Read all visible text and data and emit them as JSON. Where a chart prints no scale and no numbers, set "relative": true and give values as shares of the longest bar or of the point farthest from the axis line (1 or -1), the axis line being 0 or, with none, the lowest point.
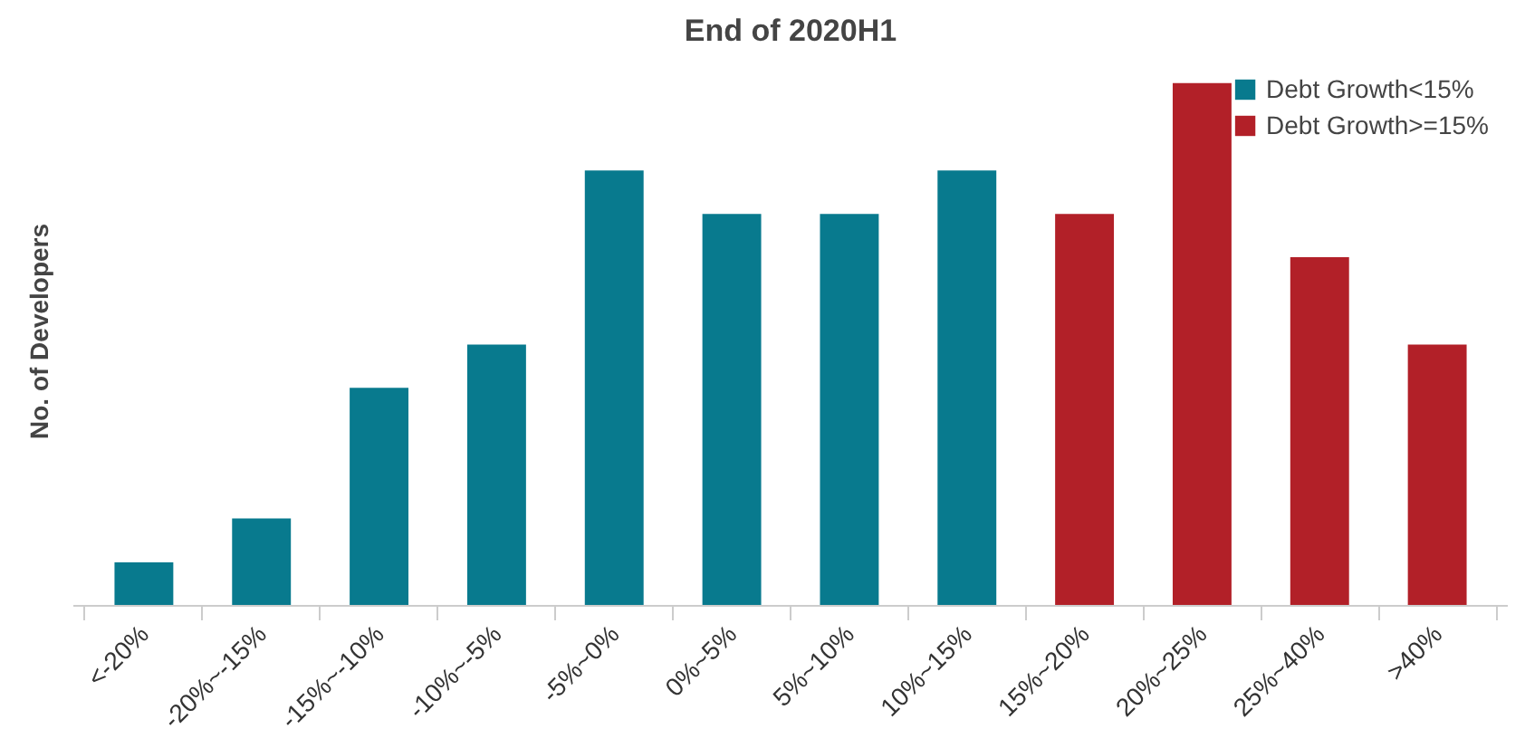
{
  "chart_data": {
    "type": "bar",
    "title": "End of 2020H1",
    "ylabel": "No. of Developers",
    "relative": true,
    "legend": "top right",
    "grid": false,
    "categories": [
      "<-20%",
      "-20%~-15%",
      "-15%~-10%",
      "-10%~-5%",
      "-5%~0%",
      "0%~5%",
      "5%~10%",
      "10%~15%",
      "15%~20%",
      "20%~25%",
      "25%~40%",
      ">40%"
    ],
    "series": [
      {
        "name": "Debt Growth<15%",
        "color": "#087a8e",
        "values": [
          0.083,
          0.167,
          0.417,
          0.5,
          0.833,
          0.75,
          0.75,
          0.833,
          null,
          null,
          null,
          null
        ]
      },
      {
        "name": "Debt Growth>=15%",
        "color": "#b22028",
        "values": [
          null,
          null,
          null,
          null,
          null,
          null,
          null,
          null,
          0.75,
          1,
          0.667,
          0.5
        ]
      }
    ]
  }
}
